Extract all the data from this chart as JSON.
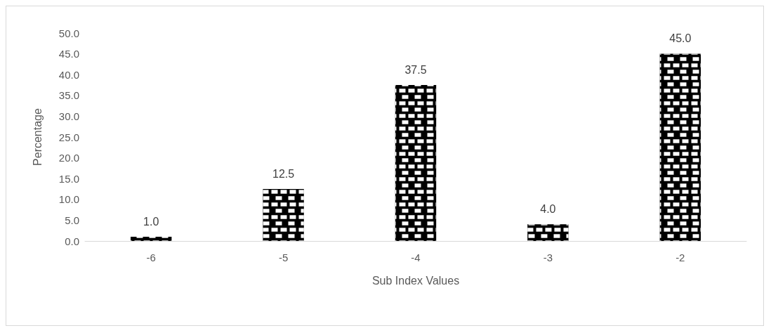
{
  "chart_data": {
    "type": "bar",
    "xlabel": "Sub Index Values",
    "ylabel": "Percentage",
    "categories": [
      "-6",
      "-5",
      "-4",
      "-3",
      "-2"
    ],
    "values": [
      1.0,
      12.5,
      37.5,
      4.0,
      45.0
    ],
    "value_labels": [
      "1.0",
      "12.5",
      "37.5",
      "4.0",
      "45.0"
    ],
    "color": "#000000",
    "ylim": [
      0,
      50
    ],
    "yticks": [
      {
        "value": 0,
        "label": "0.0"
      },
      {
        "value": 5,
        "label": "5.0"
      },
      {
        "value": 10,
        "label": "10.0"
      },
      {
        "value": 15,
        "label": "15.0"
      },
      {
        "value": 20,
        "label": "20.0"
      },
      {
        "value": 25,
        "label": "25.0"
      },
      {
        "value": 30,
        "label": "30.0"
      },
      {
        "value": 35,
        "label": "35.0"
      },
      {
        "value": 40,
        "label": "40.0"
      },
      {
        "value": 45,
        "label": "45.0"
      },
      {
        "value": 50,
        "label": "50.0"
      }
    ],
    "grid": false
  }
}
